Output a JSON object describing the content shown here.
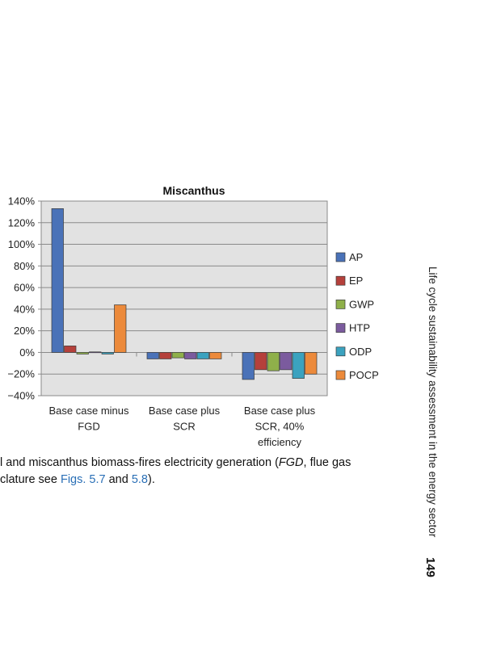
{
  "chart_data": {
    "type": "bar",
    "title": "Miscanthus",
    "xlabel": "",
    "ylabel": "",
    "ylim": [
      -40,
      140
    ],
    "ytick_labels": [
      "140%",
      "120%",
      "100%",
      "80%",
      "60%",
      "40%",
      "20%",
      "0%",
      "−20%",
      "−40%"
    ],
    "ytick_values": [
      140,
      120,
      100,
      80,
      60,
      40,
      20,
      0,
      -20,
      -40
    ],
    "grid": true,
    "legend_position": "right",
    "categories": [
      [
        "Base case minus",
        "FGD"
      ],
      [
        "Base case plus",
        "SCR"
      ],
      [
        "Base case plus",
        "SCR, 40%",
        "efficiency"
      ]
    ],
    "series": [
      {
        "name": "AP",
        "color": "#4a72b8",
        "values": [
          133,
          -6,
          -25
        ]
      },
      {
        "name": "EP",
        "color": "#b5403b",
        "values": [
          6,
          -6,
          -16
        ]
      },
      {
        "name": "GWP",
        "color": "#8fb04a",
        "values": [
          -1.5,
          -5,
          -17
        ]
      },
      {
        "name": "HTP",
        "color": "#7b5b9e",
        "values": [
          0.5,
          -6,
          -16
        ]
      },
      {
        "name": "ODP",
        "color": "#3ba2bf",
        "values": [
          -1.5,
          -6,
          -24
        ]
      },
      {
        "name": "POCP",
        "color": "#ec8a3b",
        "values": [
          44,
          -6,
          -20
        ]
      }
    ]
  },
  "caption": {
    "line1_a": "l and miscanthus biomass-fires electricity generation (",
    "line1_em": "FGD",
    "line1_b": ", flue gas",
    "line2_a": "clature see ",
    "line2_link1": "Figs. 5.7",
    "line2_mid": " and ",
    "line2_link2": "5.8",
    "line2_end": ")."
  },
  "running_head": "Life cycle sustainability assessment in the energy sector",
  "page_number": "149"
}
